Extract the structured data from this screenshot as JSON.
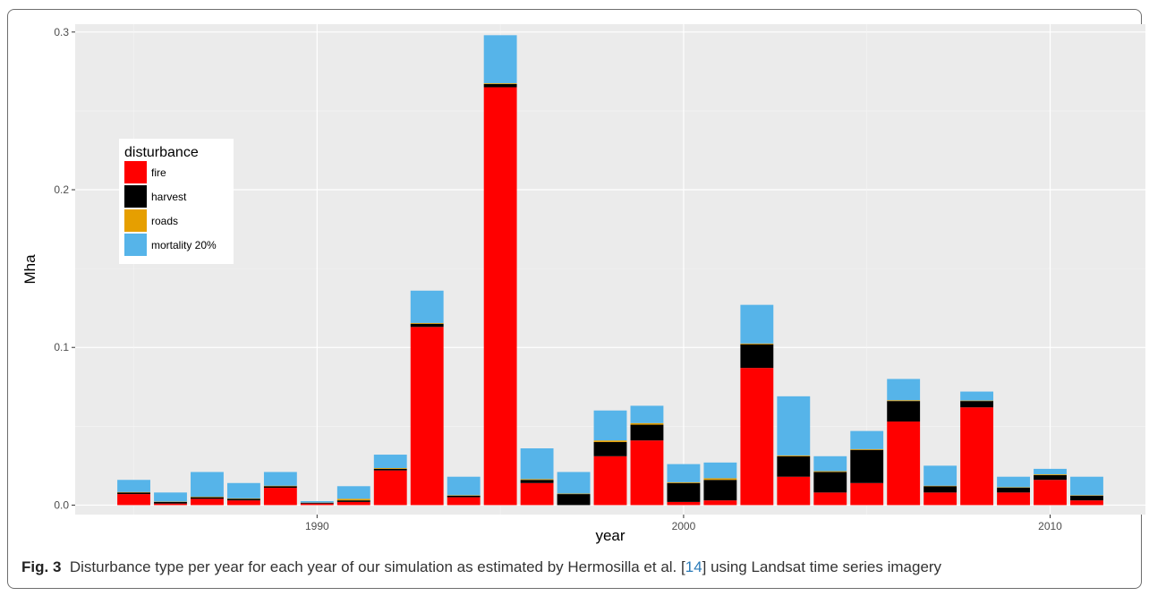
{
  "caption": {
    "label": "Fig. 3",
    "text_before": "Disturbance type per year for each year of our simulation as estimated by Hermosilla et al. [",
    "ref": "14",
    "text_after": "] using Landsat time series imagery"
  },
  "chart_data": {
    "type": "bar",
    "stacked": true,
    "xlabel": "year",
    "ylabel": "Mha",
    "xlim": [
      1983.4,
      2012.6
    ],
    "ylim": [
      -0.006,
      0.305
    ],
    "x_ticks": [
      1990,
      2000,
      2010
    ],
    "x_tick_labels": [
      "1990",
      "2000",
      "2010"
    ],
    "y_ticks": [
      0,
      0.1,
      0.2,
      0.3
    ],
    "y_tick_labels": [
      "0.0",
      "0.1",
      "0.2",
      "0.3"
    ],
    "grid": true,
    "legend": {
      "title": "disturbance",
      "placement": "top-left inside"
    },
    "x": [
      1985,
      1986,
      1987,
      1988,
      1989,
      1990,
      1991,
      1992,
      1993,
      1994,
      1995,
      1996,
      1997,
      1998,
      1999,
      2000,
      2001,
      2002,
      2003,
      2004,
      2005,
      2006,
      2007,
      2008,
      2009,
      2010,
      2011
    ],
    "series": [
      {
        "name": "fire",
        "color": "#ff0000",
        "values": [
          0.007,
          0.001,
          0.004,
          0.003,
          0.011,
          0.001,
          0.002,
          0.022,
          0.113,
          0.005,
          0.265,
          0.014,
          0.0,
          0.031,
          0.041,
          0.002,
          0.003,
          0.087,
          0.018,
          0.008,
          0.014,
          0.053,
          0.008,
          0.062,
          0.008,
          0.016,
          0.003
        ]
      },
      {
        "name": "harvest",
        "color": "#000000",
        "values": [
          0.001,
          0.001,
          0.001,
          0.001,
          0.001,
          0.0005,
          0.001,
          0.001,
          0.002,
          0.001,
          0.002,
          0.002,
          0.007,
          0.009,
          0.01,
          0.012,
          0.013,
          0.015,
          0.013,
          0.013,
          0.021,
          0.013,
          0.004,
          0.004,
          0.003,
          0.003,
          0.003
        ]
      },
      {
        "name": "roads",
        "color": "#e69f00",
        "values": [
          0.0003,
          0.0002,
          0.0003,
          0.0003,
          0.0003,
          0.0001,
          0.001,
          0.0005,
          0.0005,
          0.0003,
          0.0005,
          0.0005,
          0.0003,
          0.001,
          0.001,
          0.0005,
          0.001,
          0.0005,
          0.0005,
          0.0005,
          0.0005,
          0.0005,
          0.0003,
          0.0003,
          0.0003,
          0.0005,
          0.0003
        ]
      },
      {
        "name": "mortality 20%",
        "color": "#56b4e9",
        "values": [
          0.0077,
          0.0058,
          0.0157,
          0.0097,
          0.0087,
          0.0009,
          0.008,
          0.0085,
          0.0205,
          0.0117,
          0.0305,
          0.0195,
          0.0137,
          0.019,
          0.011,
          0.0115,
          0.01,
          0.0245,
          0.0375,
          0.0095,
          0.0115,
          0.0135,
          0.0127,
          0.0057,
          0.0067,
          0.0035,
          0.0117
        ]
      }
    ]
  }
}
